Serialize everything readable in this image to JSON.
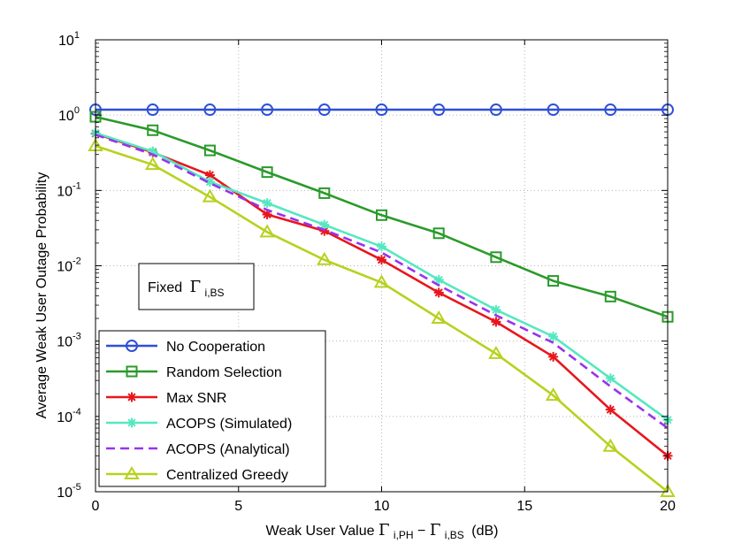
{
  "chart_data": {
    "type": "line",
    "title": "",
    "xlabel": "Weak User Value",
    "xlabel_symbol": "Γ",
    "xlabel_sub1": "i,PH",
    "xlabel_minus": "−",
    "xlabel_sub2": "i,BS",
    "xlabel_unit": "(dB)",
    "ylabel": "Average Weak User Outage Probability",
    "xlim": [
      0,
      20
    ],
    "ylim": [
      1e-05,
      10
    ],
    "yscale": "log",
    "grid": true,
    "x_ticks": [
      0,
      5,
      10,
      15,
      20
    ],
    "x_tick_labels": [
      "0",
      "5",
      "10",
      "15",
      "20"
    ],
    "y_ticks": [
      1,
      0,
      -1,
      -2,
      -3,
      -4,
      -5
    ],
    "y_tick_base": "10",
    "y_tick_exponents": [
      "1",
      "0",
      "-1",
      "-2",
      "-3",
      "-4",
      "-5"
    ],
    "annotation": {
      "text": "Fixed",
      "symbol": "Γ",
      "sub": "i,BS",
      "placement": "left-middle"
    },
    "legend_placement": "bottom-left",
    "series": [
      {
        "name": "No Cooperation",
        "color": "#2e4fd8",
        "marker": "circle",
        "dash": false,
        "x": [
          0,
          2,
          4,
          6,
          8,
          10,
          12,
          14,
          16,
          18,
          20
        ],
        "values": [
          1.18,
          1.18,
          1.18,
          1.18,
          1.18,
          1.18,
          1.18,
          1.18,
          1.18,
          1.18,
          1.18
        ]
      },
      {
        "name": "Random Selection",
        "color": "#2a9a2a",
        "marker": "square",
        "dash": false,
        "x": [
          0,
          2,
          4,
          6,
          8,
          10,
          12,
          14,
          16,
          18,
          20
        ],
        "values": [
          0.95,
          0.63,
          0.34,
          0.175,
          0.092,
          0.047,
          0.027,
          0.013,
          0.0063,
          0.0039,
          0.0021
        ]
      },
      {
        "name": "Max SNR",
        "color": "#e8161c",
        "marker": "star",
        "dash": false,
        "x": [
          0,
          2,
          4,
          6,
          8,
          10,
          12,
          14,
          16,
          18,
          20
        ],
        "values": [
          0.57,
          0.32,
          0.16,
          0.048,
          0.029,
          0.012,
          0.0044,
          0.0018,
          0.00062,
          0.000123,
          3e-05
        ]
      },
      {
        "name": "ACOPS (Simulated)",
        "color": "#55e8c0",
        "marker": "star",
        "dash": false,
        "x": [
          0,
          2,
          4,
          6,
          8,
          10,
          12,
          14,
          16,
          18,
          20
        ],
        "values": [
          0.58,
          0.33,
          0.13,
          0.068,
          0.035,
          0.018,
          0.0065,
          0.0026,
          0.00115,
          0.00032,
          9e-05
        ]
      },
      {
        "name": "ACOPS (Analytical)",
        "color": "#9933ee",
        "marker": "none",
        "dash": true,
        "x": [
          0,
          2,
          4,
          6,
          8,
          10,
          12,
          14,
          16,
          18,
          20
        ],
        "values": [
          0.55,
          0.3,
          0.125,
          0.055,
          0.03,
          0.015,
          0.0055,
          0.0022,
          0.00095,
          0.00025,
          7e-05
        ]
      },
      {
        "name": "Centralized Greedy",
        "color": "#b8d11e",
        "marker": "triangle",
        "dash": false,
        "x": [
          0,
          2,
          4,
          6,
          8,
          10,
          12,
          14,
          16,
          18,
          20
        ],
        "values": [
          0.39,
          0.22,
          0.082,
          0.028,
          0.012,
          0.006,
          0.002,
          0.00068,
          0.00019,
          4e-05,
          1e-05
        ]
      }
    ]
  }
}
